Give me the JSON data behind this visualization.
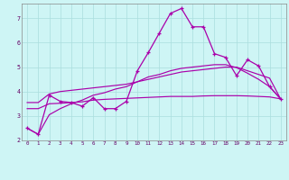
{
  "background_color": "#cef5f5",
  "grid_color": "#aadddd",
  "line_color": "#aa00aa",
  "xlabel_bg": "#7700aa",
  "xlabel_fg": "#ffffff",
  "xlim": [
    -0.5,
    23.5
  ],
  "ylim": [
    2.0,
    7.6
  ],
  "xticks": [
    0,
    1,
    2,
    3,
    4,
    5,
    6,
    7,
    8,
    9,
    10,
    11,
    12,
    13,
    14,
    15,
    16,
    17,
    18,
    19,
    20,
    21,
    22,
    23
  ],
  "yticks": [
    2,
    3,
    4,
    5,
    6,
    7
  ],
  "hours": [
    0,
    1,
    2,
    3,
    4,
    5,
    6,
    7,
    8,
    9,
    10,
    11,
    12,
    13,
    14,
    15,
    16,
    17,
    18,
    19,
    20,
    21,
    22,
    23
  ],
  "line1": [
    2.5,
    2.25,
    3.85,
    3.6,
    3.55,
    3.4,
    3.75,
    3.3,
    3.3,
    3.6,
    4.85,
    5.6,
    6.4,
    7.2,
    7.4,
    6.65,
    6.65,
    5.55,
    5.4,
    4.65,
    5.3,
    5.05,
    4.2,
    3.7
  ],
  "line2": [
    3.55,
    3.55,
    3.9,
    4.0,
    4.05,
    4.1,
    4.15,
    4.2,
    4.25,
    4.3,
    4.4,
    4.5,
    4.6,
    4.7,
    4.8,
    4.85,
    4.9,
    4.95,
    5.0,
    5.0,
    4.85,
    4.7,
    4.55,
    3.7
  ],
  "line3": [
    3.3,
    3.3,
    3.5,
    3.52,
    3.55,
    3.58,
    3.65,
    3.68,
    3.7,
    3.72,
    3.74,
    3.76,
    3.78,
    3.8,
    3.8,
    3.8,
    3.82,
    3.83,
    3.83,
    3.83,
    3.82,
    3.8,
    3.78,
    3.7
  ],
  "line4": [
    2.5,
    2.25,
    3.05,
    3.3,
    3.5,
    3.65,
    3.85,
    3.95,
    4.1,
    4.2,
    4.4,
    4.6,
    4.7,
    4.85,
    4.95,
    5.0,
    5.05,
    5.1,
    5.1,
    4.98,
    4.75,
    4.5,
    4.2,
    3.7
  ]
}
